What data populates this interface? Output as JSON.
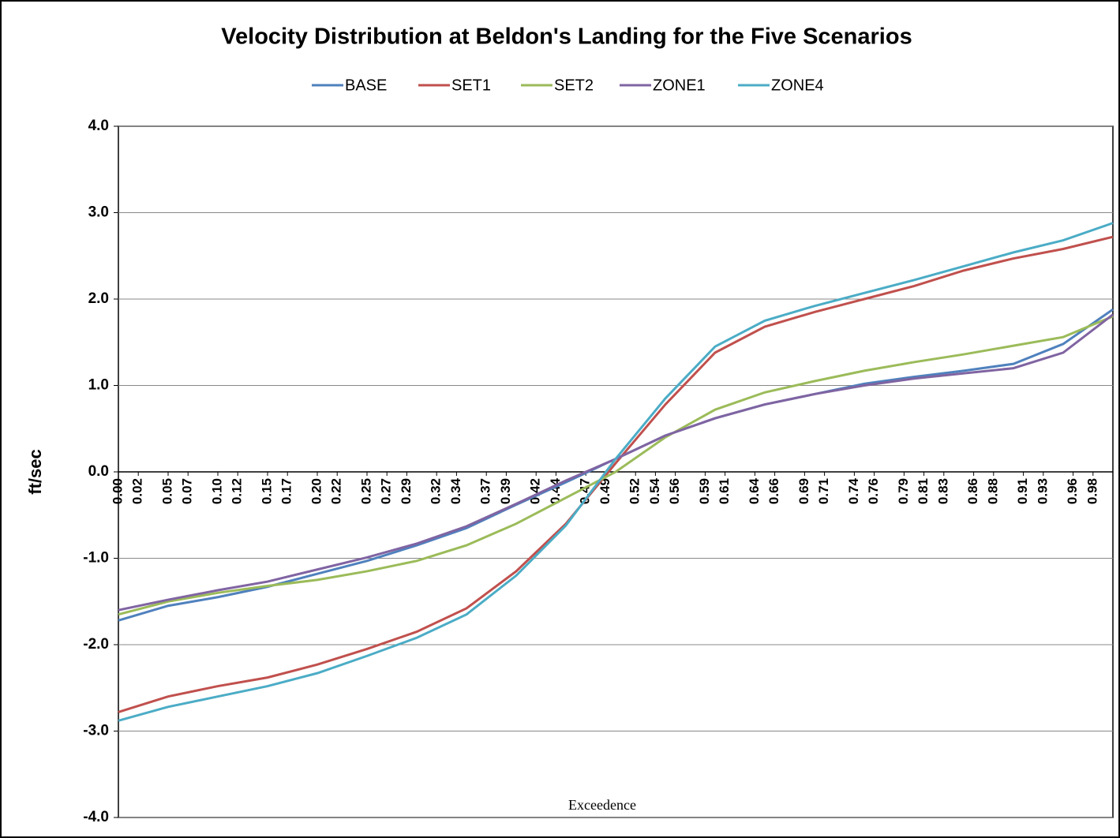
{
  "chart_data": {
    "type": "line",
    "title": "Velocity Distribution at Beldon's Landing for the Five Scenarios",
    "x_label": "Exceedence",
    "y_label": "ft/sec",
    "x": [
      0,
      0.05,
      0.1,
      0.15,
      0.2,
      0.25,
      0.3,
      0.35,
      0.4,
      0.45,
      0.5,
      0.55,
      0.6,
      0.65,
      0.7,
      0.75,
      0.8,
      0.85,
      0.9,
      0.95,
      1.0
    ],
    "series": [
      {
        "name": "BASE",
        "color": "#4f81bd",
        "values": [
          -1.72,
          -1.55,
          -1.45,
          -1.33,
          -1.18,
          -1.03,
          -0.85,
          -0.65,
          -0.38,
          -0.12,
          0.15,
          0.42,
          0.62,
          0.78,
          0.9,
          1.02,
          1.1,
          1.17,
          1.25,
          1.48,
          1.88
        ]
      },
      {
        "name": "SET1",
        "color": "#c0504d",
        "values": [
          -2.78,
          -2.6,
          -2.48,
          -2.38,
          -2.23,
          -2.05,
          -1.85,
          -1.58,
          -1.15,
          -0.6,
          0.1,
          0.78,
          1.38,
          1.68,
          1.85,
          2.0,
          2.15,
          2.33,
          2.47,
          2.58,
          2.72
        ]
      },
      {
        "name": "SET2",
        "color": "#9bbb59",
        "values": [
          -1.65,
          -1.5,
          -1.4,
          -1.32,
          -1.25,
          -1.15,
          -1.03,
          -0.85,
          -0.6,
          -0.3,
          0.0,
          0.4,
          0.72,
          0.92,
          1.05,
          1.17,
          1.27,
          1.36,
          1.46,
          1.56,
          1.8
        ]
      },
      {
        "name": "ZONE1",
        "color": "#8064a2",
        "values": [
          -1.6,
          -1.48,
          -1.37,
          -1.27,
          -1.13,
          -0.99,
          -0.83,
          -0.63,
          -0.37,
          -0.1,
          0.15,
          0.42,
          0.62,
          0.78,
          0.9,
          1.0,
          1.08,
          1.14,
          1.2,
          1.38,
          1.82
        ]
      },
      {
        "name": "ZONE4",
        "color": "#4bacc6",
        "values": [
          -2.88,
          -2.72,
          -2.6,
          -2.48,
          -2.33,
          -2.13,
          -1.92,
          -1.65,
          -1.2,
          -0.62,
          0.15,
          0.85,
          1.45,
          1.75,
          1.92,
          2.07,
          2.22,
          2.38,
          2.54,
          2.68,
          2.88
        ]
      }
    ],
    "xlim": [
      0,
      1
    ],
    "xticks": [
      {
        "value": 0,
        "label": "0.00"
      },
      0.02,
      0.05,
      0.07,
      {
        "value": 0.1,
        "label": "0.10"
      },
      0.12,
      0.15,
      0.17,
      {
        "value": 0.2,
        "label": "0.20"
      },
      0.22,
      0.25,
      0.27,
      0.29,
      0.32,
      0.34,
      0.37,
      0.39,
      0.42,
      0.44,
      0.47,
      0.49,
      0.52,
      0.54,
      0.56,
      0.59,
      0.61,
      0.64,
      0.66,
      0.69,
      0.71,
      0.74,
      0.76,
      0.79,
      0.81,
      0.83,
      0.86,
      0.88,
      0.91,
      0.93,
      0.96,
      0.98
    ],
    "ylim": [
      -4,
      4
    ],
    "yticks": [
      {
        "value": -4,
        "label": "-4.0"
      },
      {
        "value": -3,
        "label": "-3.0"
      },
      {
        "value": -2,
        "label": "-2.0"
      },
      {
        "value": -1,
        "label": "-1.0"
      },
      {
        "value": 0,
        "label": "0.0"
      },
      {
        "value": 1,
        "label": "1.0"
      },
      {
        "value": 2,
        "label": "2.0"
      },
      {
        "value": 3,
        "label": "3.0"
      },
      {
        "value": 4,
        "label": "4.0"
      }
    ],
    "grid": true,
    "legend": "top"
  }
}
